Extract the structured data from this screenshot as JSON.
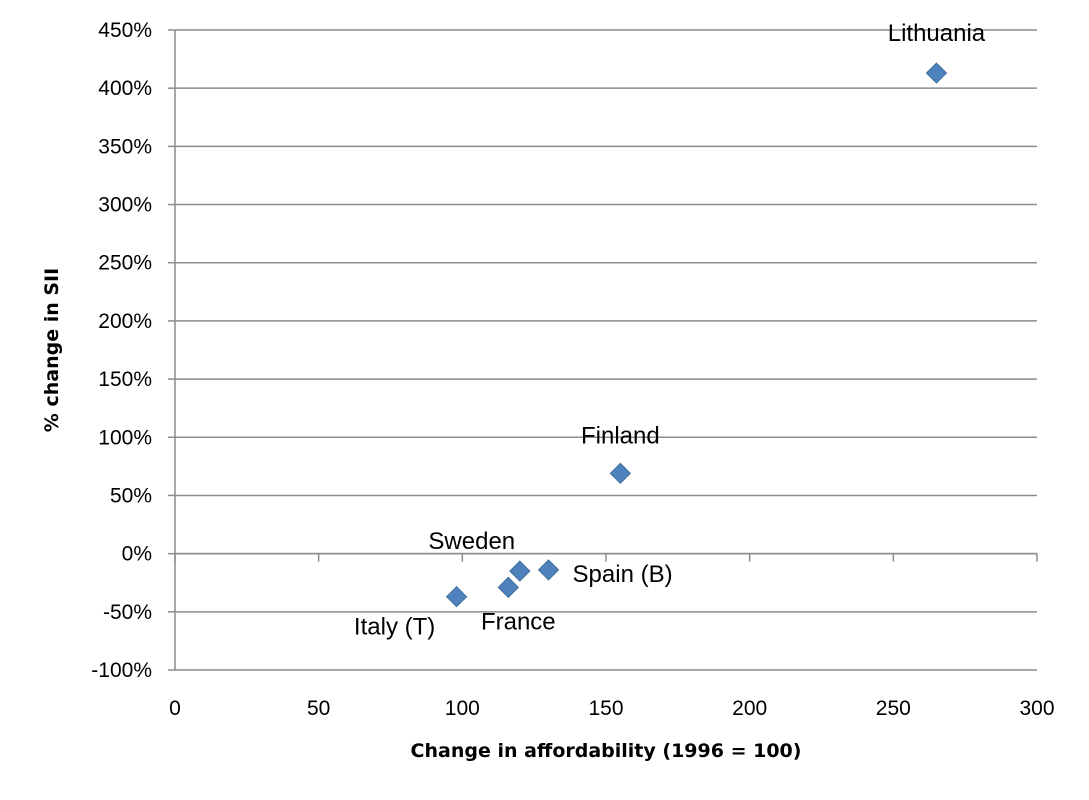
{
  "chart_data": {
    "type": "scatter",
    "title": "",
    "xlabel": "Change in affordability (1996 = 100)",
    "ylabel": "% change in SII",
    "xlim": [
      0,
      300
    ],
    "ylim": [
      -100,
      450
    ],
    "xticks": [
      0,
      50,
      100,
      150,
      200,
      250,
      300
    ],
    "yticks": [
      -100,
      -50,
      0,
      50,
      100,
      150,
      200,
      250,
      300,
      350,
      400,
      450
    ],
    "ytick_format": "percent",
    "grid": "horizontal",
    "legend": "none",
    "marker": "diamond",
    "marker_color": "#4f81bd",
    "points": [
      {
        "label": "Lithuania",
        "x": 265,
        "y": 413
      },
      {
        "label": "Finland",
        "x": 155,
        "y": 69
      },
      {
        "label": "Spain (B)",
        "x": 130,
        "y": -14
      },
      {
        "label": "Sweden",
        "x": 120,
        "y": -15
      },
      {
        "label": "France",
        "x": 116,
        "y": -29
      },
      {
        "label": "Italy (T)",
        "x": 98,
        "y": -37
      }
    ]
  }
}
